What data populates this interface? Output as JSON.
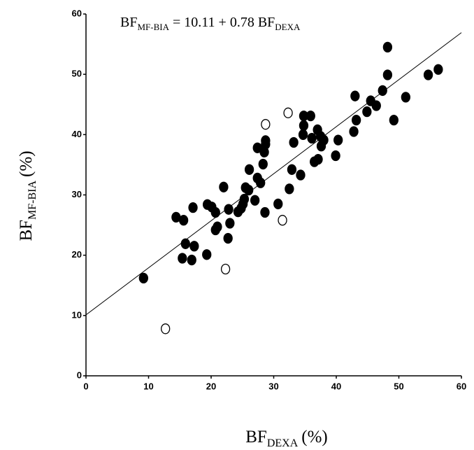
{
  "chart_data": {
    "type": "scatter",
    "equation": {
      "lhs": "BF",
      "lhs_sub": "MF-BIA",
      "eq": "=",
      "plus": "+",
      "rhs": "BF",
      "rhs_sub": "DEXA"
    },
    "regression": {
      "intercept": 10.11,
      "slope": 0.78
    },
    "xlabel": {
      "text": "BF",
      "sub": "DEXA",
      "unit": "(%)"
    },
    "ylabel": {
      "text": "BF",
      "sub": "MF-BIA",
      "unit": "(%)"
    },
    "xlim": [
      0,
      60
    ],
    "ylim": [
      0,
      60
    ],
    "xticks": [
      0,
      10,
      20,
      30,
      40,
      50,
      60
    ],
    "yticks": [
      0,
      10,
      20,
      30,
      40,
      50,
      60
    ],
    "series": [
      {
        "filled": true,
        "color": "#000000",
        "x": [
          9.2,
          14.4,
          15.6,
          15.4,
          15.9,
          16.9,
          17.3,
          17.1,
          19.3,
          19.4,
          20.1,
          20.7,
          20.7,
          21.0,
          22.0,
          22.7,
          23.0,
          22.8,
          24.3,
          24.8,
          25.1,
          25.3,
          25.5,
          26.0,
          26.1,
          27.0,
          27.4,
          27.4,
          27.9,
          28.3,
          28.5,
          28.7,
          28.6,
          28.7,
          30.7,
          32.5,
          32.9,
          33.2,
          34.3,
          34.7,
          34.8,
          34.8,
          35.9,
          36.1,
          36.5,
          37.0,
          37.1,
          37.5,
          37.6,
          38.0,
          39.9,
          40.3,
          42.8,
          43.0,
          43.2,
          44.9,
          45.5,
          46.4,
          47.4,
          48.2,
          48.2,
          49.2,
          51.1,
          54.7,
          56.3
        ],
        "values": [
          16.2,
          26.3,
          25.8,
          19.5,
          21.9,
          19.2,
          21.5,
          27.9,
          20.1,
          28.4,
          28.0,
          27.1,
          24.2,
          24.7,
          31.3,
          22.8,
          25.3,
          27.6,
          27.2,
          27.8,
          28.5,
          29.3,
          31.2,
          30.8,
          34.2,
          29.1,
          32.8,
          37.8,
          32.0,
          35.1,
          37.1,
          39.0,
          27.1,
          38.4,
          28.5,
          31.0,
          34.2,
          38.7,
          33.3,
          40.0,
          43.1,
          41.5,
          43.1,
          39.4,
          35.5,
          40.8,
          35.9,
          39.7,
          38.1,
          39.1,
          36.5,
          39.1,
          40.5,
          46.4,
          42.4,
          43.8,
          45.6,
          44.8,
          47.3,
          54.5,
          49.9,
          42.4,
          46.2,
          49.9,
          50.8
        ]
      },
      {
        "filled": false,
        "color": "#000000",
        "x": [
          12.7,
          22.3,
          28.7,
          32.3,
          31.4
        ],
        "values": [
          7.8,
          17.7,
          41.7,
          43.6,
          25.8
        ]
      }
    ]
  }
}
